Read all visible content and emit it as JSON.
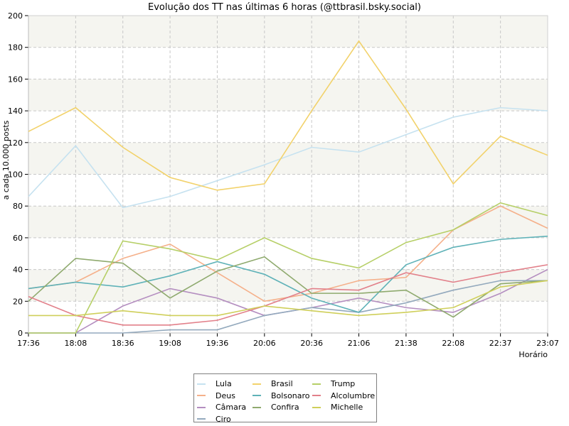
{
  "chart_data": {
    "type": "line",
    "title": "Evolução dos TT nas últimas 6 horas (@ttbrasil.bsky.social)",
    "xlabel": "Horário",
    "ylabel": "a cada 10.000 posts",
    "ylim": [
      0,
      200
    ],
    "yticks": [
      0,
      20,
      40,
      60,
      80,
      100,
      120,
      140,
      160,
      180,
      200
    ],
    "grid": true,
    "legend_position": "bottom-center",
    "categories": [
      "17:36",
      "18:08",
      "18:36",
      "19:08",
      "19:36",
      "20:06",
      "20:36",
      "21:06",
      "21:38",
      "22:08",
      "22:37",
      "23:07"
    ],
    "series": [
      {
        "name": "Lula",
        "color": "#c6e2f0",
        "values": [
          86,
          118,
          79,
          86,
          96,
          106,
          117,
          114,
          125,
          136,
          142,
          140
        ]
      },
      {
        "name": "Deus",
        "color": "#f5b08a",
        "values": [
          28,
          32,
          47,
          56,
          38,
          20,
          25,
          33,
          35,
          65,
          80,
          66
        ]
      },
      {
        "name": "Câmara",
        "color": "#b48ec0",
        "values": [
          0,
          0,
          17,
          28,
          22,
          11,
          16,
          22,
          16,
          13,
          25,
          40
        ]
      },
      {
        "name": "Ciro",
        "color": "#93a9bd",
        "values": [
          0,
          0,
          0,
          2,
          2,
          11,
          16,
          13,
          19,
          27,
          33,
          33
        ]
      },
      {
        "name": "Brasil",
        "color": "#f2d26b",
        "values": [
          127,
          142,
          117,
          98,
          90,
          94,
          140,
          184,
          141,
          94,
          124,
          112
        ]
      },
      {
        "name": "Bolsonaro",
        "color": "#5fb2b8",
        "values": [
          28,
          32,
          29,
          36,
          45,
          37,
          22,
          13,
          43,
          54,
          59,
          61
        ]
      },
      {
        "name": "Confira",
        "color": "#8faa6e",
        "values": [
          20,
          47,
          44,
          22,
          39,
          48,
          25,
          25,
          27,
          10,
          31,
          33
        ]
      },
      {
        "name": "Trump",
        "color": "#b6cf67",
        "values": [
          0,
          0,
          58,
          53,
          46,
          60,
          47,
          41,
          57,
          65,
          82,
          74
        ]
      },
      {
        "name": "Alcolumbre",
        "color": "#e2808a",
        "values": [
          23,
          11,
          5,
          5,
          8,
          17,
          28,
          27,
          38,
          32,
          38,
          43
        ]
      },
      {
        "name": "Michelle",
        "color": "#cfcf5a",
        "values": [
          11,
          11,
          14,
          11,
          11,
          17,
          14,
          11,
          13,
          16,
          29,
          33
        ]
      }
    ],
    "band_color": "#f5f5f0"
  }
}
